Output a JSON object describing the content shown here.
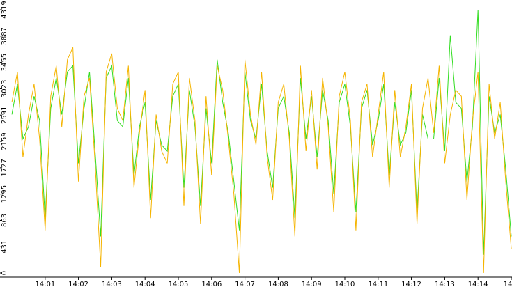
{
  "chart_data": {
    "type": "line",
    "x": [
      0,
      10,
      20,
      30,
      40,
      50,
      60,
      70,
      80,
      90,
      100,
      110,
      120,
      130,
      140,
      150,
      160,
      170,
      180,
      190,
      200,
      210,
      220,
      230,
      240,
      250,
      260,
      270,
      280,
      290,
      300,
      310,
      320,
      330,
      340,
      350,
      360,
      370,
      380,
      390,
      400,
      410,
      420,
      430,
      440,
      450,
      460,
      470,
      480,
      490,
      500,
      510,
      520,
      530,
      540,
      550,
      560,
      570,
      580,
      590,
      600,
      610,
      620,
      630,
      640,
      650,
      660,
      670,
      680,
      690,
      700,
      710,
      720,
      730,
      740,
      750,
      760,
      770,
      780,
      790,
      800,
      810,
      820,
      830,
      840,
      850,
      860,
      870,
      880,
      890,
      900
    ],
    "series": [
      {
        "color": "#33dd22",
        "values": [
          2600,
          3100,
          2200,
          2400,
          2900,
          2500,
          900,
          2700,
          3200,
          2600,
          3300,
          3400,
          1800,
          2700,
          3300,
          2000,
          600,
          3200,
          3400,
          2500,
          2400,
          3200,
          1600,
          2400,
          2800,
          1200,
          2500,
          2100,
          2000,
          2900,
          3100,
          1400,
          3000,
          2400,
          1100,
          2700,
          1800,
          3500,
          2800,
          2300,
          1500,
          700,
          3300,
          2500,
          2200,
          3100,
          2000,
          1400,
          2700,
          2900,
          2300,
          900,
          3200,
          2200,
          2900,
          1900,
          3000,
          2500,
          1300,
          2800,
          3100,
          2400,
          1000,
          2700,
          3000,
          2100,
          2500,
          3100,
          1600,
          2800,
          2100,
          2300,
          3000,
          1000,
          2600,
          2200,
          2200,
          3200,
          2000,
          3900,
          2800,
          2700,
          1500,
          2400,
          4319,
          300,
          2900,
          2300,
          2600,
          1700,
          600
        ]
      },
      {
        "color": "#f5b400",
        "values": [
          2800,
          3300,
          1900,
          2600,
          3100,
          2200,
          700,
          2900,
          3400,
          2400,
          3500,
          3700,
          1500,
          2900,
          3200,
          1800,
          100,
          3300,
          3600,
          2700,
          2500,
          3400,
          1400,
          2300,
          3000,
          900,
          2600,
          2000,
          1800,
          3100,
          3300,
          1100,
          3200,
          2500,
          800,
          2900,
          1600,
          3400,
          3000,
          2200,
          1300,
          0,
          3500,
          2600,
          2100,
          3300,
          1900,
          1200,
          2800,
          3100,
          2200,
          600,
          3400,
          2000,
          3000,
          1700,
          3200,
          2400,
          1000,
          2900,
          3300,
          2500,
          700,
          2800,
          3100,
          1900,
          2600,
          3300,
          1400,
          3000,
          1900,
          2400,
          3100,
          800,
          2700,
          3200,
          2300,
          3400,
          1800,
          2600,
          3000,
          2900,
          1200,
          2500,
          3300,
          0,
          3100,
          2200,
          2800,
          1500,
          400
        ]
      }
    ],
    "xlim": [
      0,
      900
    ],
    "xticks": [
      {
        "value": 60,
        "label": "14:01"
      },
      {
        "value": 120,
        "label": "14:02"
      },
      {
        "value": 180,
        "label": "14:03"
      },
      {
        "value": 240,
        "label": "14:04"
      },
      {
        "value": 300,
        "label": "14:05"
      },
      {
        "value": 360,
        "label": "14:06"
      },
      {
        "value": 420,
        "label": "14:07"
      },
      {
        "value": 480,
        "label": "14:08"
      },
      {
        "value": 540,
        "label": "14:09"
      },
      {
        "value": 600,
        "label": "14:10"
      },
      {
        "value": 660,
        "label": "14:11"
      },
      {
        "value": 720,
        "label": "14:12"
      },
      {
        "value": 780,
        "label": "14:13"
      },
      {
        "value": 840,
        "label": "14:14"
      },
      {
        "value": 900,
        "label": "14"
      }
    ],
    "ylim": [
      0,
      4319
    ],
    "yticks": [
      0,
      431,
      863,
      1295,
      1727,
      2159,
      2591,
      3023,
      3455,
      3887,
      4319
    ]
  }
}
